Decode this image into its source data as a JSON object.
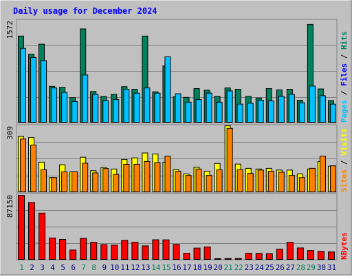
{
  "title": "Daily usage for December 2024",
  "colors": {
    "background": "#c0c0c0",
    "title": "#0000ff",
    "hits": "#00805c",
    "files": "#00c0ff",
    "sites": "#ff8000",
    "visits": "#ffff00",
    "kbytes": "#ff0000",
    "weekend_label": "#00805c",
    "weekday_label": "#000080",
    "separator": "#000000"
  },
  "chart_data": [
    {
      "type": "bar",
      "name": "hits-files-panel",
      "max_label": "1572",
      "ylim": [
        0,
        1572
      ],
      "grid": true,
      "right_label": [
        {
          "text": "Pages",
          "color": "#00c0ff"
        },
        {
          "text": " / ",
          "color": "#000000"
        },
        {
          "text": "Files",
          "color": "#0000ff"
        },
        {
          "text": " / ",
          "color": "#000000"
        },
        {
          "text": "Hits",
          "color": "#00805c"
        }
      ],
      "categories": [
        "1",
        "2",
        "3",
        "4",
        "5",
        "6",
        "7",
        "8",
        "9",
        "10",
        "11",
        "12",
        "13",
        "14",
        "15",
        "16",
        "17",
        "18",
        "19",
        "20",
        "21",
        "22",
        "23",
        "24",
        "25",
        "26",
        "27",
        "28",
        "29",
        "30",
        "31"
      ],
      "series": [
        {
          "key": "hits",
          "values": [
            1340,
            1060,
            1215,
            565,
            550,
            390,
            1450,
            485,
            410,
            440,
            560,
            520,
            1340,
            480,
            880,
            405,
            395,
            530,
            505,
            410,
            540,
            520,
            410,
            385,
            530,
            510,
            520,
            350,
            1520,
            525,
            345
          ]
        },
        {
          "key": "files",
          "values": [
            1150,
            1010,
            960,
            540,
            470,
            330,
            740,
            440,
            345,
            360,
            520,
            460,
            540,
            460,
            1020,
            450,
            320,
            360,
            460,
            320,
            495,
            290,
            305,
            350,
            340,
            410,
            440,
            310,
            570,
            420,
            290
          ]
        }
      ]
    },
    {
      "type": "bar",
      "name": "sites-visits-panel",
      "max_label": "309",
      "ylim": [
        0,
        309
      ],
      "grid": true,
      "right_label": [
        {
          "text": "Sites",
          "color": "#ff8000"
        },
        {
          "text": " / ",
          "color": "#000000"
        },
        {
          "text": "Visits",
          "color": "#ffff00"
        }
      ],
      "categories": [
        "1",
        "2",
        "3",
        "4",
        "5",
        "6",
        "7",
        "8",
        "9",
        "10",
        "11",
        "12",
        "13",
        "14",
        "15",
        "16",
        "17",
        "18",
        "19",
        "20",
        "21",
        "22",
        "23",
        "24",
        "25",
        "26",
        "27",
        "28",
        "29",
        "30",
        "31"
      ],
      "series": [
        {
          "key": "visits",
          "values": [
            262,
            257,
            142,
            70,
            130,
            97,
            165,
            102,
            117,
            110,
            155,
            162,
            185,
            180,
            142,
            107,
            87,
            118,
            100,
            136,
            312,
            133,
            113,
            110,
            113,
            105,
            105,
            87,
            110,
            145,
            123
          ]
        },
        {
          "key": "sites",
          "values": [
            250,
            222,
            107,
            70,
            97,
            97,
            137,
            92,
            112,
            85,
            132,
            132,
            145,
            140,
            170,
            100,
            80,
            110,
            80,
            106,
            300,
            107,
            90,
            105,
            100,
            95,
            80,
            70,
            113,
            170,
            125
          ]
        }
      ]
    },
    {
      "type": "bar",
      "name": "kbytes-panel",
      "max_label": "87150",
      "ylim": [
        0,
        87150
      ],
      "grid": true,
      "right_label": [
        {
          "text": "KBytes",
          "color": "#ff0000"
        }
      ],
      "categories": [
        "1",
        "2",
        "3",
        "4",
        "5",
        "6",
        "7",
        "8",
        "9",
        "10",
        "11",
        "12",
        "13",
        "14",
        "15",
        "16",
        "17",
        "18",
        "19",
        "20",
        "21",
        "22",
        "23",
        "24",
        "25",
        "26",
        "27",
        "28",
        "29",
        "30",
        "31"
      ],
      "series": [
        {
          "key": "kbytes",
          "values": [
            87000,
            77500,
            63200,
            29700,
            27800,
            13500,
            29200,
            23900,
            20800,
            20100,
            26500,
            24000,
            19100,
            27300,
            27200,
            21000,
            9100,
            16100,
            17700,
            1900,
            2100,
            2100,
            9100,
            9000,
            8700,
            14700,
            23800,
            16300,
            12800,
            11700,
            10900
          ]
        }
      ]
    }
  ],
  "x_axis": {
    "labels": [
      "1",
      "2",
      "3",
      "4",
      "5",
      "6",
      "7",
      "8",
      "9",
      "10",
      "11",
      "12",
      "13",
      "14",
      "15",
      "16",
      "17",
      "18",
      "19",
      "20",
      "21",
      "22",
      "23",
      "24",
      "25",
      "26",
      "27",
      "28",
      "29",
      "30",
      "31"
    ],
    "weekend": [
      true,
      false,
      false,
      false,
      false,
      false,
      true,
      true,
      false,
      false,
      false,
      false,
      false,
      true,
      true,
      false,
      false,
      false,
      false,
      false,
      true,
      true,
      false,
      false,
      false,
      false,
      false,
      true,
      true,
      false,
      false
    ]
  }
}
